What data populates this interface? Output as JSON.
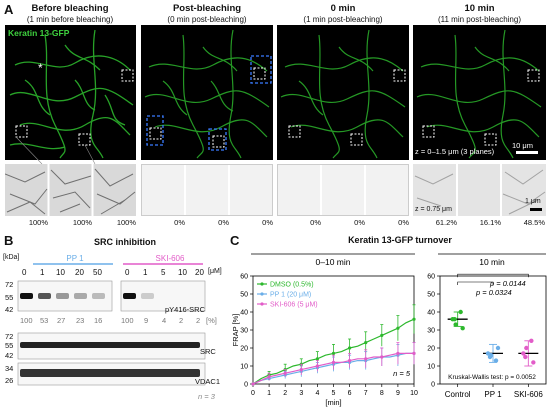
{
  "panelA": {
    "label": "A",
    "stain": "Keratin 13-GFP",
    "asterisk": "*",
    "columns": [
      {
        "title": "Before bleaching",
        "sub": "(1 min before bleaching)"
      },
      {
        "title": "Post-bleaching",
        "sub": "(0 min post-bleaching)"
      },
      {
        "title": "0 min",
        "sub": "(1 min post-bleaching)"
      },
      {
        "title": "10 min",
        "sub": "(11 min post-bleaching)"
      }
    ],
    "zlabel": "z = 0–1.5 μm (3 planes)",
    "scalebar": "10 μm",
    "crop_z": "z = 0.75 μm",
    "crop_scalebar": "1 μm",
    "percents": [
      "100%",
      "100%",
      "100%",
      "0%",
      "0%",
      "0%",
      "0%",
      "0%",
      "0%",
      "61.2%",
      "16.1%",
      "48.5%"
    ]
  },
  "panelB": {
    "label": "B",
    "title": "SRC inhibition",
    "kda_label": "[kDa]",
    "pp1_label": "PP 1",
    "ski_label": "SKI-606",
    "conc_unit": "[μM]",
    "conc_pp1": [
      "0",
      "1",
      "10",
      "20",
      "50"
    ],
    "conc_ski": [
      "0",
      "1",
      "5",
      "10",
      "20"
    ],
    "markers1": [
      "72",
      "55",
      "42"
    ],
    "markers2": [
      "72",
      "55",
      "42"
    ],
    "markers3": [
      "34",
      "26"
    ],
    "band1": "pY416-SRC",
    "band2": "SRC",
    "band3": "VDAC1",
    "quant_pp1": [
      "100",
      "53",
      "27",
      "23",
      "16"
    ],
    "quant_ski": [
      "100",
      "9",
      "4",
      "2",
      "2"
    ],
    "quant_unit": "[%]",
    "n": "n = 3",
    "colors": {
      "pp1": "#6aaee8",
      "ski": "#e25cc8"
    }
  },
  "panelC": {
    "label": "C",
    "title": "Keratin 13-GFP turnover",
    "left_header": "0–10 min",
    "right_header": "10 min",
    "n_label": "n = 5",
    "pval1": "p = 0.0324",
    "pval2": "p = 0.0144",
    "kw_label": "Kruskal-Wallis test: p = 0.0052"
  },
  "chart_data": [
    {
      "type": "line",
      "xlabel": "[min]",
      "ylabel": "FRAP [%]",
      "xlim": [
        0,
        10
      ],
      "ylim": [
        0,
        60
      ],
      "xticks": [
        0,
        1,
        2,
        3,
        4,
        5,
        6,
        7,
        8,
        9,
        10
      ],
      "yticks": [
        0,
        10,
        20,
        30,
        40,
        50,
        60
      ],
      "legend_position": "top-left",
      "series": [
        {
          "name": "DMSO (0.5%)",
          "color": "#2db82d",
          "x": [
            0,
            0.5,
            1,
            1.5,
            2,
            2.5,
            3,
            3.5,
            4,
            4.5,
            5,
            5.5,
            6,
            6.5,
            7,
            7.5,
            8,
            8.5,
            9,
            9.5,
            10
          ],
          "y": [
            0,
            3,
            5,
            6,
            8,
            10,
            11,
            13,
            14,
            16,
            17,
            18,
            20,
            21,
            23,
            25,
            27,
            29,
            31,
            34,
            36
          ],
          "err": [
            0,
            1,
            2,
            2,
            3,
            3,
            3,
            4,
            4,
            4,
            5,
            5,
            5,
            5,
            6,
            6,
            6,
            7,
            7,
            7,
            8
          ]
        },
        {
          "name": "PP 1 (20 μM)",
          "color": "#6aaee8",
          "x": [
            0,
            0.5,
            1,
            1.5,
            2,
            2.5,
            3,
            3.5,
            4,
            4.5,
            5,
            5.5,
            6,
            6.5,
            7,
            7.5,
            8,
            8.5,
            9,
            9.5,
            10
          ],
          "y": [
            0,
            2,
            3,
            4,
            5,
            6,
            7,
            8,
            9,
            10,
            11,
            12,
            12,
            13,
            13,
            14,
            15,
            15,
            16,
            17,
            17
          ],
          "err": [
            0,
            1,
            1,
            2,
            2,
            2,
            3,
            3,
            3,
            3,
            4,
            4,
            4,
            4,
            5,
            5,
            5,
            5,
            6,
            6,
            6
          ]
        },
        {
          "name": "SKI-606 (5 μM)",
          "color": "#e25cc8",
          "x": [
            0,
            0.5,
            1,
            1.5,
            2,
            2.5,
            3,
            3.5,
            4,
            4.5,
            5,
            5.5,
            6,
            6.5,
            7,
            7.5,
            8,
            8.5,
            9,
            9.5,
            10
          ],
          "y": [
            0,
            2,
            4,
            5,
            6,
            7,
            8,
            9,
            10,
            11,
            12,
            12,
            13,
            14,
            14,
            15,
            15,
            16,
            17,
            17,
            17
          ],
          "err": [
            0,
            1,
            2,
            2,
            2,
            3,
            3,
            3,
            3,
            4,
            4,
            4,
            4,
            5,
            5,
            5,
            5,
            5,
            6,
            6,
            6
          ]
        }
      ]
    },
    {
      "type": "scatter",
      "ylim": [
        0,
        60
      ],
      "yticks": [
        0,
        10,
        20,
        30,
        40,
        50,
        60
      ],
      "categories": [
        "Control",
        "PP 1",
        "SKI-606"
      ],
      "colors": [
        "#2db82d",
        "#6aaee8",
        "#e25cc8"
      ],
      "points": [
        [
          36,
          40,
          33,
          31,
          36
        ],
        [
          17,
          13,
          16,
          20,
          15
        ],
        [
          17,
          24,
          20,
          12,
          15
        ]
      ],
      "means": [
        36,
        17,
        17
      ],
      "sd": [
        4,
        5,
        7
      ]
    }
  ]
}
